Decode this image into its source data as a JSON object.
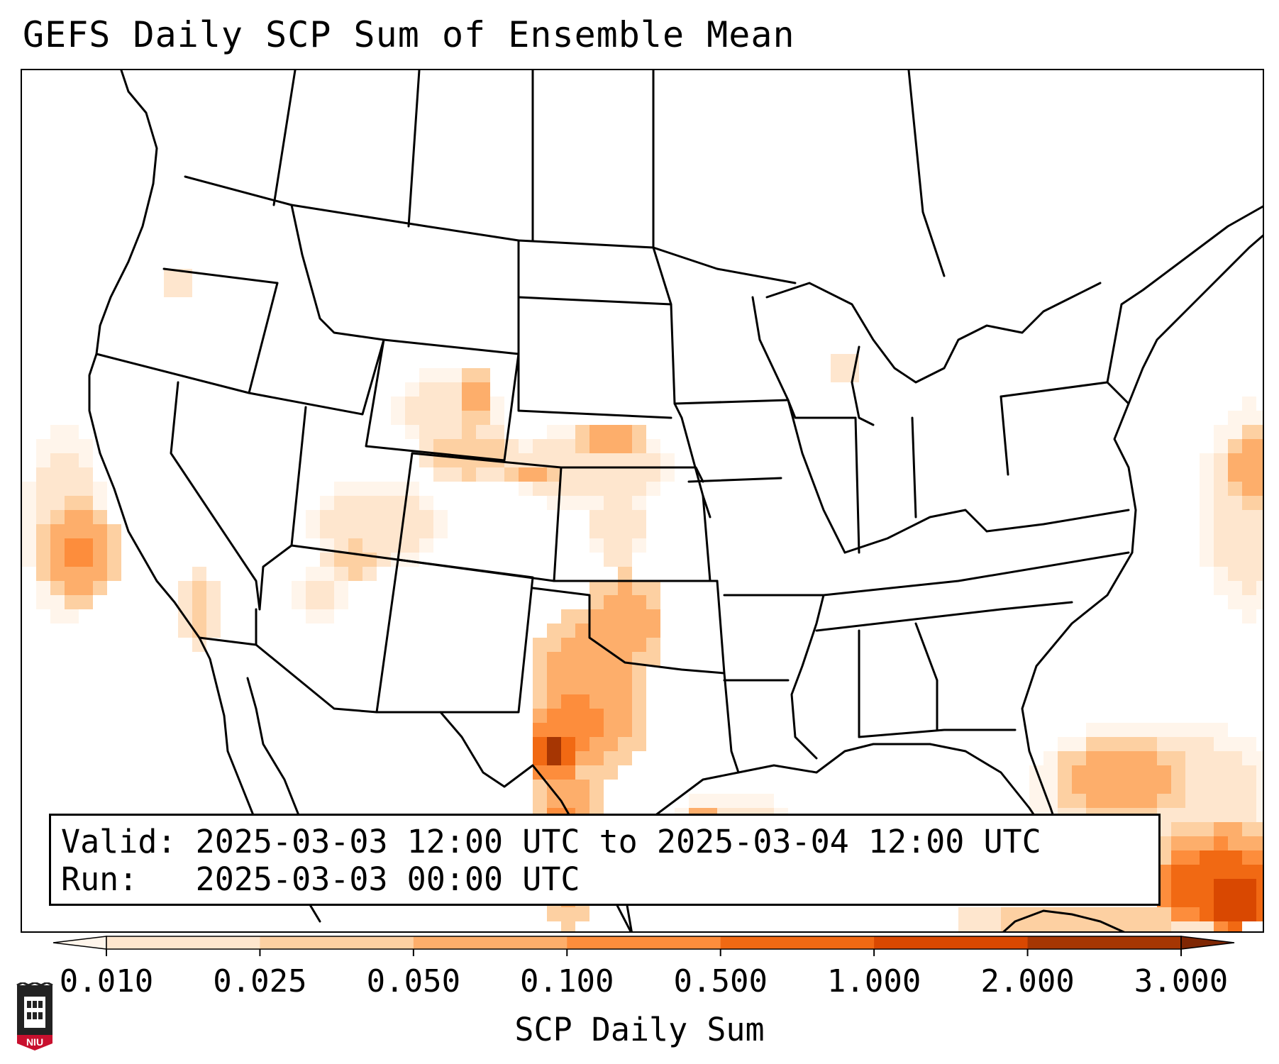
{
  "title": "GEFS Daily SCP Sum of Ensemble Mean",
  "info": {
    "valid_label": "Valid:",
    "valid_value": "2025-03-03 12:00 UTC to 2025-03-04 12:00 UTC",
    "run_label": "Run:",
    "run_value": "2025-03-03 00:00 UTC"
  },
  "colorbar": {
    "label": "SCP Daily Sum",
    "ticks": [
      "0.010",
      "0.025",
      "0.050",
      "0.100",
      "0.500",
      "1.000",
      "2.000",
      "3.000"
    ],
    "colors": [
      "#fff5eb",
      "#fee6ce",
      "#fdd0a2",
      "#fdae6b",
      "#fd8d3c",
      "#f16913",
      "#d94801",
      "#a63603",
      "#7f2704"
    ]
  },
  "map": {
    "region": "CONUS",
    "field": "SCP daily sum",
    "max_area": "west Texas"
  },
  "logo": {
    "text": "NIU",
    "icon": "niu-building-logo-icon"
  }
}
